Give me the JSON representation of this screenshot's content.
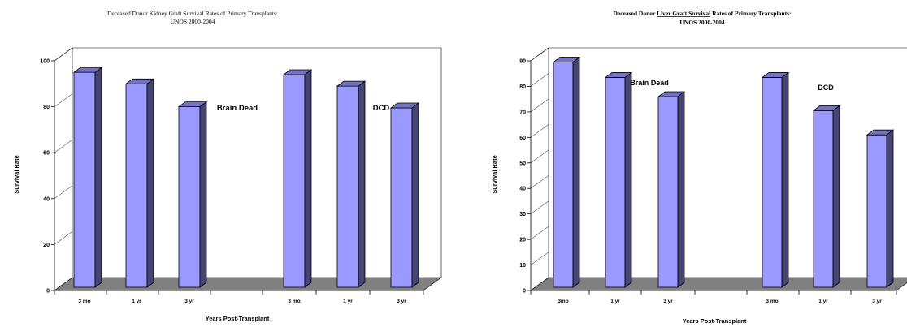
{
  "chart_data": [
    {
      "type": "bar",
      "title_line1": "Deceased Donor Kidney Graft Survival Rates of Primary Transplants:",
      "title_line2": "UNOS 2000-2004",
      "ylabel": "Survival Rate",
      "xlabel": "Years Post-Transplant",
      "ylim": [
        0,
        100
      ],
      "yticks": [
        "0",
        "20",
        "40",
        "60",
        "80",
        "100"
      ],
      "categories": [
        "3 mo",
        "1 yr",
        "3 yr",
        "3 mo",
        "1 yr",
        "3 yr"
      ],
      "groups": [
        "Brain Dead",
        "DCD"
      ],
      "values": [
        95,
        90,
        80,
        94,
        89,
        79.5
      ],
      "bar_color": "#9999ff",
      "floor_color": "#808080"
    },
    {
      "type": "bar",
      "title_line1_pre": "Deceased Donor ",
      "title_line1_underline": "Liver Graft Survival",
      "title_line1_post": " Rates of Primary Transplants:",
      "title_line2": "UNOS 2000-2004",
      "ylabel": "Survival Rate",
      "xlabel": "Years Post-Transplant",
      "ylim": [
        0,
        90
      ],
      "yticks": [
        "0",
        "10",
        "20",
        "30",
        "40",
        "50",
        "60",
        "70",
        "80",
        "90"
      ],
      "categories": [
        "3mo",
        "1 yr",
        "3 yr",
        "3 mo",
        "1 yr",
        "3 yr"
      ],
      "groups": [
        "Brain Dead",
        "DCD"
      ],
      "values": [
        89.5,
        83.5,
        76,
        83.5,
        70.5,
        61
      ],
      "bar_color": "#9999ff",
      "floor_color": "#808080"
    }
  ]
}
